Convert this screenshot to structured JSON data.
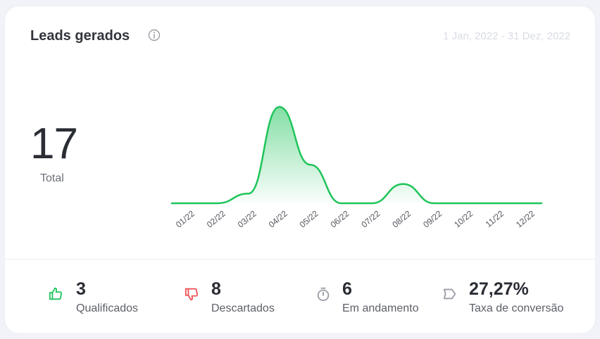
{
  "header": {
    "title": "Leads gerados",
    "date_range": "1 Jan, 2022 - 31 Dez, 2022"
  },
  "summary": {
    "total_value": "17",
    "total_label": "Total"
  },
  "colors": {
    "accent_green": "#1fc45a",
    "thumb_down_red": "#f0545a",
    "muted_gray": "#9b9da5"
  },
  "chart_data": {
    "type": "area",
    "categories": [
      "01/22",
      "02/22",
      "03/22",
      "04/22",
      "05/22",
      "06/22",
      "07/22",
      "08/22",
      "09/22",
      "10/22",
      "11/22",
      "12/22"
    ],
    "values": [
      0,
      0,
      1,
      10,
      4,
      0,
      0,
      2,
      0,
      0,
      0,
      0
    ],
    "title": "Leads gerados",
    "xlabel": "",
    "ylabel": "",
    "ylim": [
      0,
      10
    ]
  },
  "stats": [
    {
      "icon": "thumbs-up-icon",
      "value": "3",
      "label": "Qualificados"
    },
    {
      "icon": "thumbs-down-icon",
      "value": "8",
      "label": "Descartados"
    },
    {
      "icon": "stopwatch-icon",
      "value": "6",
      "label": "Em andamento"
    },
    {
      "icon": "tag-icon",
      "value": "27,27%",
      "label": "Taxa de conversão"
    }
  ]
}
